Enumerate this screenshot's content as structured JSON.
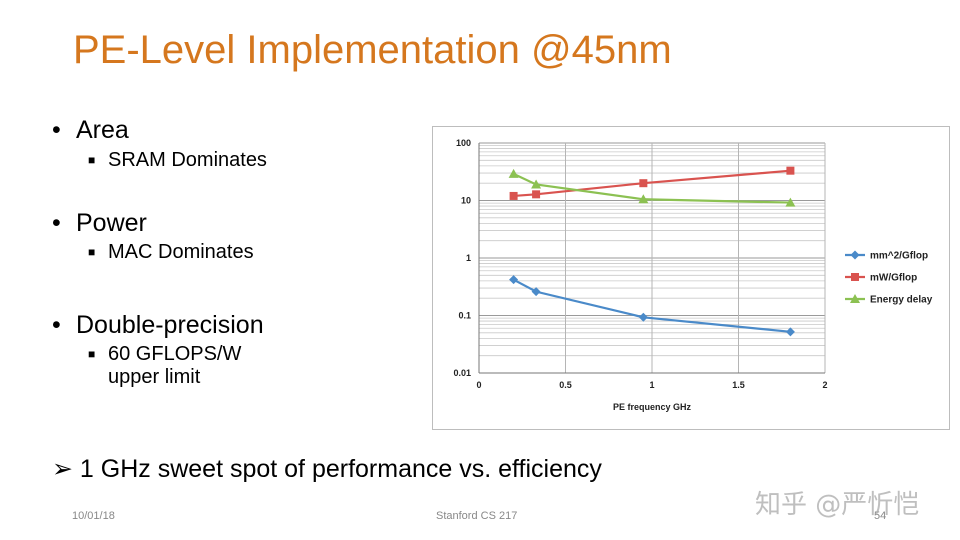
{
  "slide": {
    "title": "PE-Level Implementation @45nm",
    "bullets": [
      {
        "label": "Area",
        "sub": "SRAM Dominates"
      },
      {
        "label": "Power",
        "sub": "MAC Dominates"
      },
      {
        "label": "Double-precision",
        "sub_line1": "60 GFLOPS/W",
        "sub_line2": "upper limit"
      }
    ],
    "conclusion": "1 GHz sweet spot of performance vs. efficiency",
    "bullet_glyph": "•",
    "sub_bullet_glyph": "■",
    "arrow_glyph": "➢"
  },
  "footer": {
    "date": "10/01/18",
    "course": "Stanford CS 217",
    "page": "54"
  },
  "watermark": "知乎 @严忻恺",
  "colors": {
    "title": "#d5771e",
    "mm2_series": "#4a8ac9",
    "mw_series": "#d9534f",
    "energy_series": "#8cc152"
  },
  "chart_data": {
    "type": "line",
    "xlabel": "PE frequency GHz",
    "ylabel": "",
    "xlim": [
      0,
      2
    ],
    "ylim": [
      0.01,
      100
    ],
    "yscale": "log",
    "grid": true,
    "x_ticks": [
      "0",
      "0.5",
      "1",
      "1.5",
      "2"
    ],
    "y_ticks": [
      "100",
      "10",
      "1",
      "0.1",
      "0.01"
    ],
    "legend_position": "right",
    "series": [
      {
        "name": "mm^2/Gflop",
        "marker": "diamond",
        "x": [
          0.2,
          0.33,
          0.95,
          1.8
        ],
        "values": [
          0.42,
          0.26,
          0.093,
          0.052
        ]
      },
      {
        "name": "mW/Gflop",
        "marker": "square",
        "x": [
          0.2,
          0.33,
          0.95,
          1.8
        ],
        "values": [
          12,
          12.8,
          20,
          33
        ]
      },
      {
        "name": "Energy delay",
        "marker": "triangle",
        "x": [
          0.2,
          0.33,
          0.95,
          1.8
        ],
        "values": [
          29,
          19,
          10.5,
          9.2
        ]
      }
    ]
  }
}
